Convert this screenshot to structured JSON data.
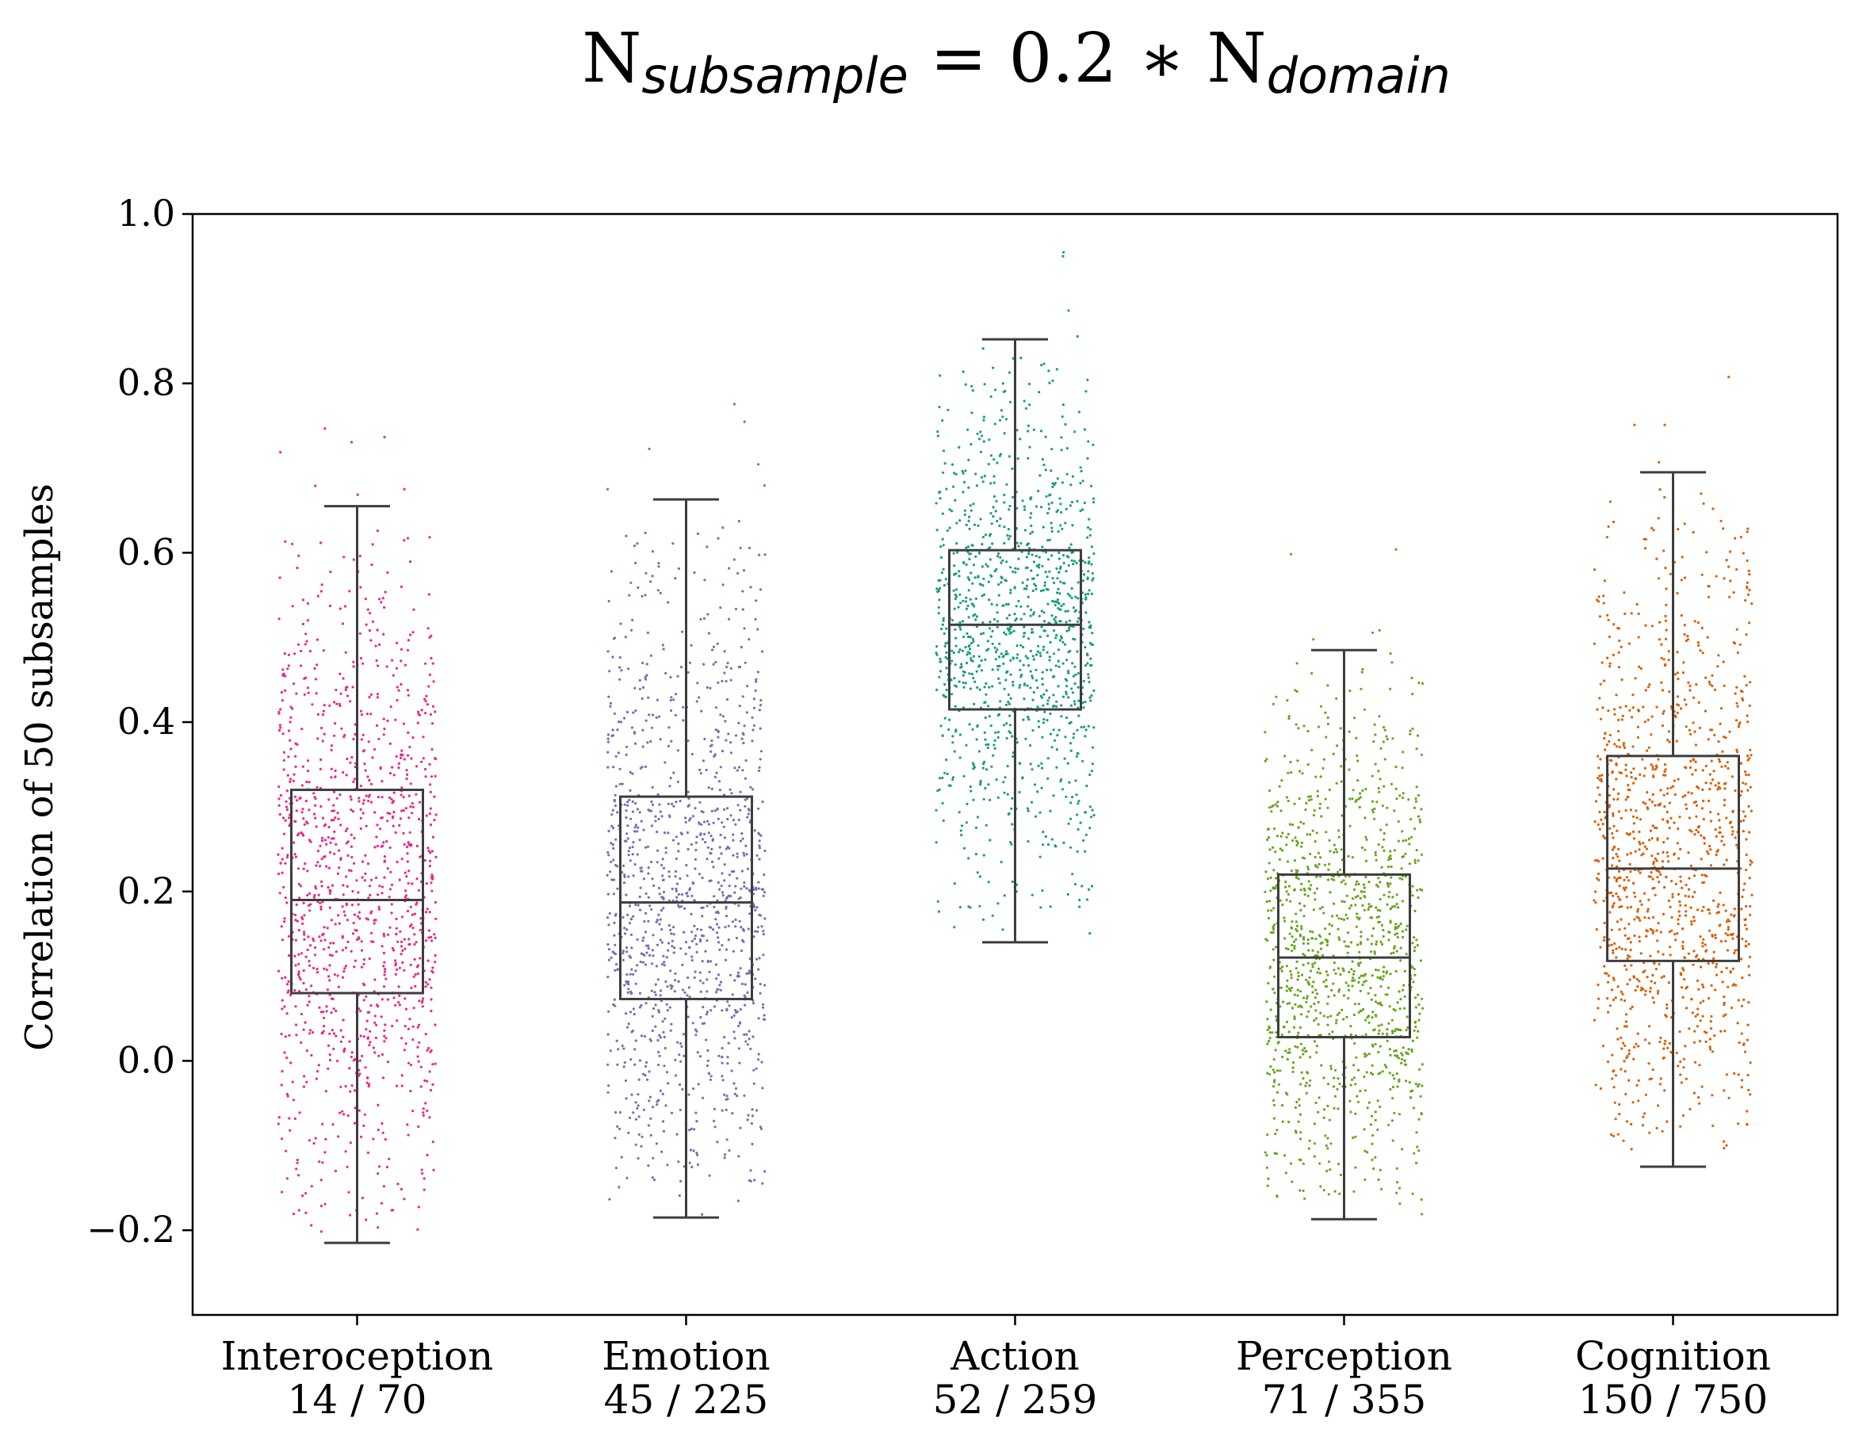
{
  "chart_data": {
    "type": "box",
    "title": {
      "prefix": "N",
      "sub1": "subsample",
      "middle": " = 0.2 ∗ N",
      "sub2": "domain"
    },
    "ylabel": "Correlation of 50 subsamples",
    "xlabel": "",
    "ylim": [
      -0.3,
      1.0
    ],
    "yticks": [
      -0.2,
      0.0,
      0.2,
      0.4,
      0.6,
      0.8,
      1.0
    ],
    "ytick_labels": [
      "−0.2",
      "0.0",
      "0.2",
      "0.4",
      "0.6",
      "0.8",
      "1.0"
    ],
    "grid": false,
    "categories": [
      {
        "name": "Interoception",
        "counts": "14 / 70",
        "color": "#e7298a",
        "whislo": -0.215,
        "q1": 0.08,
        "median": 0.19,
        "q3": 0.32,
        "whishi": 0.655
      },
      {
        "name": "Emotion",
        "counts": "45 / 225",
        "color": "#7570b3",
        "whislo": -0.185,
        "q1": 0.073,
        "median": 0.187,
        "q3": 0.312,
        "whishi": 0.663
      },
      {
        "name": "Action",
        "counts": "52 / 259",
        "color": "#1b9e77",
        "whislo": 0.14,
        "q1": 0.415,
        "median": 0.515,
        "q3": 0.603,
        "whishi": 0.852
      },
      {
        "name": "Perception",
        "counts": "71 / 355",
        "color": "#66a61e",
        "whislo": -0.187,
        "q1": 0.028,
        "median": 0.122,
        "q3": 0.22,
        "whishi": 0.485
      },
      {
        "name": "Cognition",
        "counts": "150 / 750",
        "color": "#d95f02",
        "whislo": -0.125,
        "q1": 0.118,
        "median": 0.227,
        "q3": 0.36,
        "whishi": 0.695
      }
    ]
  }
}
